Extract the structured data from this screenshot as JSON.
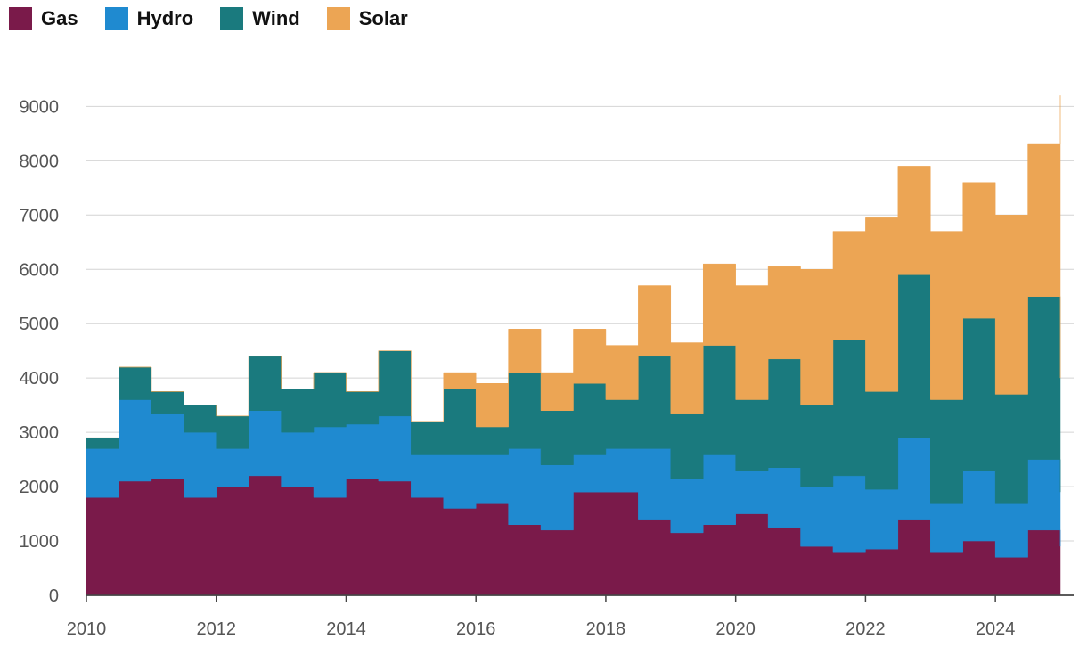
{
  "chart_data": {
    "type": "area",
    "stacked": true,
    "xlabel": "",
    "ylabel": "",
    "xlim": [
      2010.0,
      2025.0
    ],
    "ylim": [
      0,
      9400
    ],
    "yticks": [
      0,
      1000,
      2000,
      3000,
      4000,
      5000,
      6000,
      7000,
      8000,
      9000
    ],
    "xticks": [
      "2010",
      "2012",
      "2014",
      "2016",
      "2018",
      "2020",
      "2022",
      "2024"
    ],
    "grid": "horizontal",
    "legend_position": "top-left",
    "series": [
      {
        "name": "Gas",
        "color": "#7a1a4a",
        "x": [
          2010.0,
          2010.5,
          2011.0,
          2011.5,
          2012.0,
          2012.5,
          2013.0,
          2013.5,
          2014.0,
          2014.5,
          2015.0,
          2015.5,
          2016.0,
          2016.5,
          2017.0,
          2017.5,
          2018.0,
          2018.5,
          2019.0,
          2019.5,
          2020.0,
          2020.5,
          2021.0,
          2021.5,
          2022.0,
          2022.5,
          2023.0,
          2023.5,
          2024.0,
          2024.5,
          2025.0
        ],
        "values": [
          1800,
          2100,
          2150,
          1800,
          2000,
          2200,
          2000,
          1800,
          2150,
          2100,
          1800,
          1600,
          1700,
          1300,
          1200,
          1900,
          1900,
          1400,
          1150,
          1300,
          1500,
          1250,
          900,
          800,
          850,
          1400,
          800,
          1000,
          700,
          1200,
          900
        ]
      },
      {
        "name": "Hydro",
        "color": "#1f8ad0",
        "x": [
          2010.0,
          2010.5,
          2011.0,
          2011.5,
          2012.0,
          2012.5,
          2013.0,
          2013.5,
          2014.0,
          2014.5,
          2015.0,
          2015.5,
          2016.0,
          2016.5,
          2017.0,
          2017.5,
          2018.0,
          2018.5,
          2019.0,
          2019.5,
          2020.0,
          2020.5,
          2021.0,
          2021.5,
          2022.0,
          2022.5,
          2023.0,
          2023.5,
          2024.0,
          2024.5,
          2025.0
        ],
        "values": [
          900,
          1500,
          1200,
          1200,
          700,
          1200,
          1000,
          1300,
          1000,
          1200,
          800,
          1000,
          900,
          1400,
          1200,
          700,
          800,
          1300,
          1000,
          1300,
          800,
          1100,
          1100,
          1400,
          1100,
          1500,
          900,
          1300,
          1000,
          1300,
          1000
        ]
      },
      {
        "name": "Wind",
        "color": "#1a7a7e",
        "x": [
          2010.0,
          2010.5,
          2011.0,
          2011.5,
          2012.0,
          2012.5,
          2013.0,
          2013.5,
          2014.0,
          2014.5,
          2015.0,
          2015.5,
          2016.0,
          2016.5,
          2017.0,
          2017.5,
          2018.0,
          2018.5,
          2019.0,
          2019.5,
          2020.0,
          2020.5,
          2021.0,
          2021.5,
          2022.0,
          2022.5,
          2023.0,
          2023.5,
          2024.0,
          2024.5,
          2025.0
        ],
        "values": [
          200,
          600,
          400,
          500,
          600,
          1000,
          800,
          1000,
          600,
          1200,
          600,
          1200,
          500,
          1400,
          1000,
          1300,
          900,
          1700,
          1200,
          2000,
          1300,
          2000,
          1500,
          2500,
          1800,
          3000,
          1900,
          2800,
          2000,
          3000,
          2100
        ]
      },
      {
        "name": "Solar",
        "color": "#eca554",
        "x": [
          2010.0,
          2010.5,
          2011.0,
          2011.5,
          2012.0,
          2012.5,
          2013.0,
          2013.5,
          2014.0,
          2014.5,
          2015.0,
          2015.5,
          2016.0,
          2016.5,
          2017.0,
          2017.5,
          2018.0,
          2018.5,
          2019.0,
          2019.5,
          2020.0,
          2020.5,
          2021.0,
          2021.5,
          2022.0,
          2022.5,
          2023.0,
          2023.5,
          2024.0,
          2024.5,
          2025.0
        ],
        "values": [
          0,
          0,
          0,
          0,
          0,
          0,
          0,
          0,
          0,
          0,
          0,
          300,
          800,
          800,
          700,
          1000,
          1000,
          1300,
          1300,
          1500,
          2100,
          1700,
          2500,
          2000,
          3200,
          2000,
          3100,
          2500,
          3300,
          2800,
          5200
        ]
      }
    ]
  }
}
